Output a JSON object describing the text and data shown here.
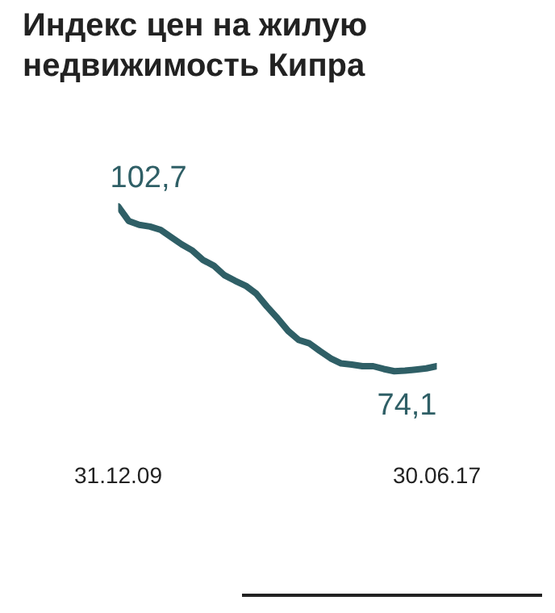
{
  "chart_data": {
    "type": "line",
    "title": "Индекс цен на жилую недвижимость Кипра",
    "x": [
      "2009-12-31",
      "2010-03-31",
      "2010-06-30",
      "2010-09-30",
      "2010-12-31",
      "2011-03-31",
      "2011-06-30",
      "2011-09-30",
      "2011-12-31",
      "2012-03-31",
      "2012-06-30",
      "2012-09-30",
      "2012-12-31",
      "2013-03-31",
      "2013-06-30",
      "2013-09-30",
      "2013-12-31",
      "2014-03-31",
      "2014-06-30",
      "2014-09-30",
      "2014-12-31",
      "2015-03-31",
      "2015-06-30",
      "2015-09-30",
      "2015-12-31",
      "2016-03-31",
      "2016-06-30",
      "2016-09-30",
      "2016-12-31",
      "2017-03-31",
      "2017-06-30"
    ],
    "series": [
      {
        "color": "#2f5f66",
        "values": [
          102.7,
          100.1,
          99.4,
          99.1,
          98.5,
          97.2,
          95.9,
          94.8,
          93.1,
          92.1,
          90.4,
          89.4,
          88.5,
          87.1,
          84.8,
          82.7,
          80.4,
          78.8,
          78.2,
          76.8,
          75.5,
          74.6,
          74.4,
          74.1,
          74.1,
          73.6,
          73.2,
          73.3,
          73.5,
          73.7,
          74.1
        ],
        "value_labels": [
          "102,7",
          null,
          null,
          null,
          null,
          null,
          null,
          null,
          null,
          null,
          null,
          null,
          null,
          null,
          null,
          null,
          null,
          null,
          null,
          null,
          null,
          null,
          null,
          null,
          null,
          null,
          null,
          null,
          null,
          null,
          "74,1"
        ]
      }
    ],
    "xlim": [
      "2009-12-31",
      "2017-06-30"
    ],
    "xticks": [
      {
        "value": "2009-12-31",
        "label": "31.12.09"
      },
      {
        "value": "2017-06-30",
        "label": "30.06.17"
      }
    ],
    "grid": false,
    "legend": false,
    "marker": "none",
    "line_style": "solid"
  }
}
